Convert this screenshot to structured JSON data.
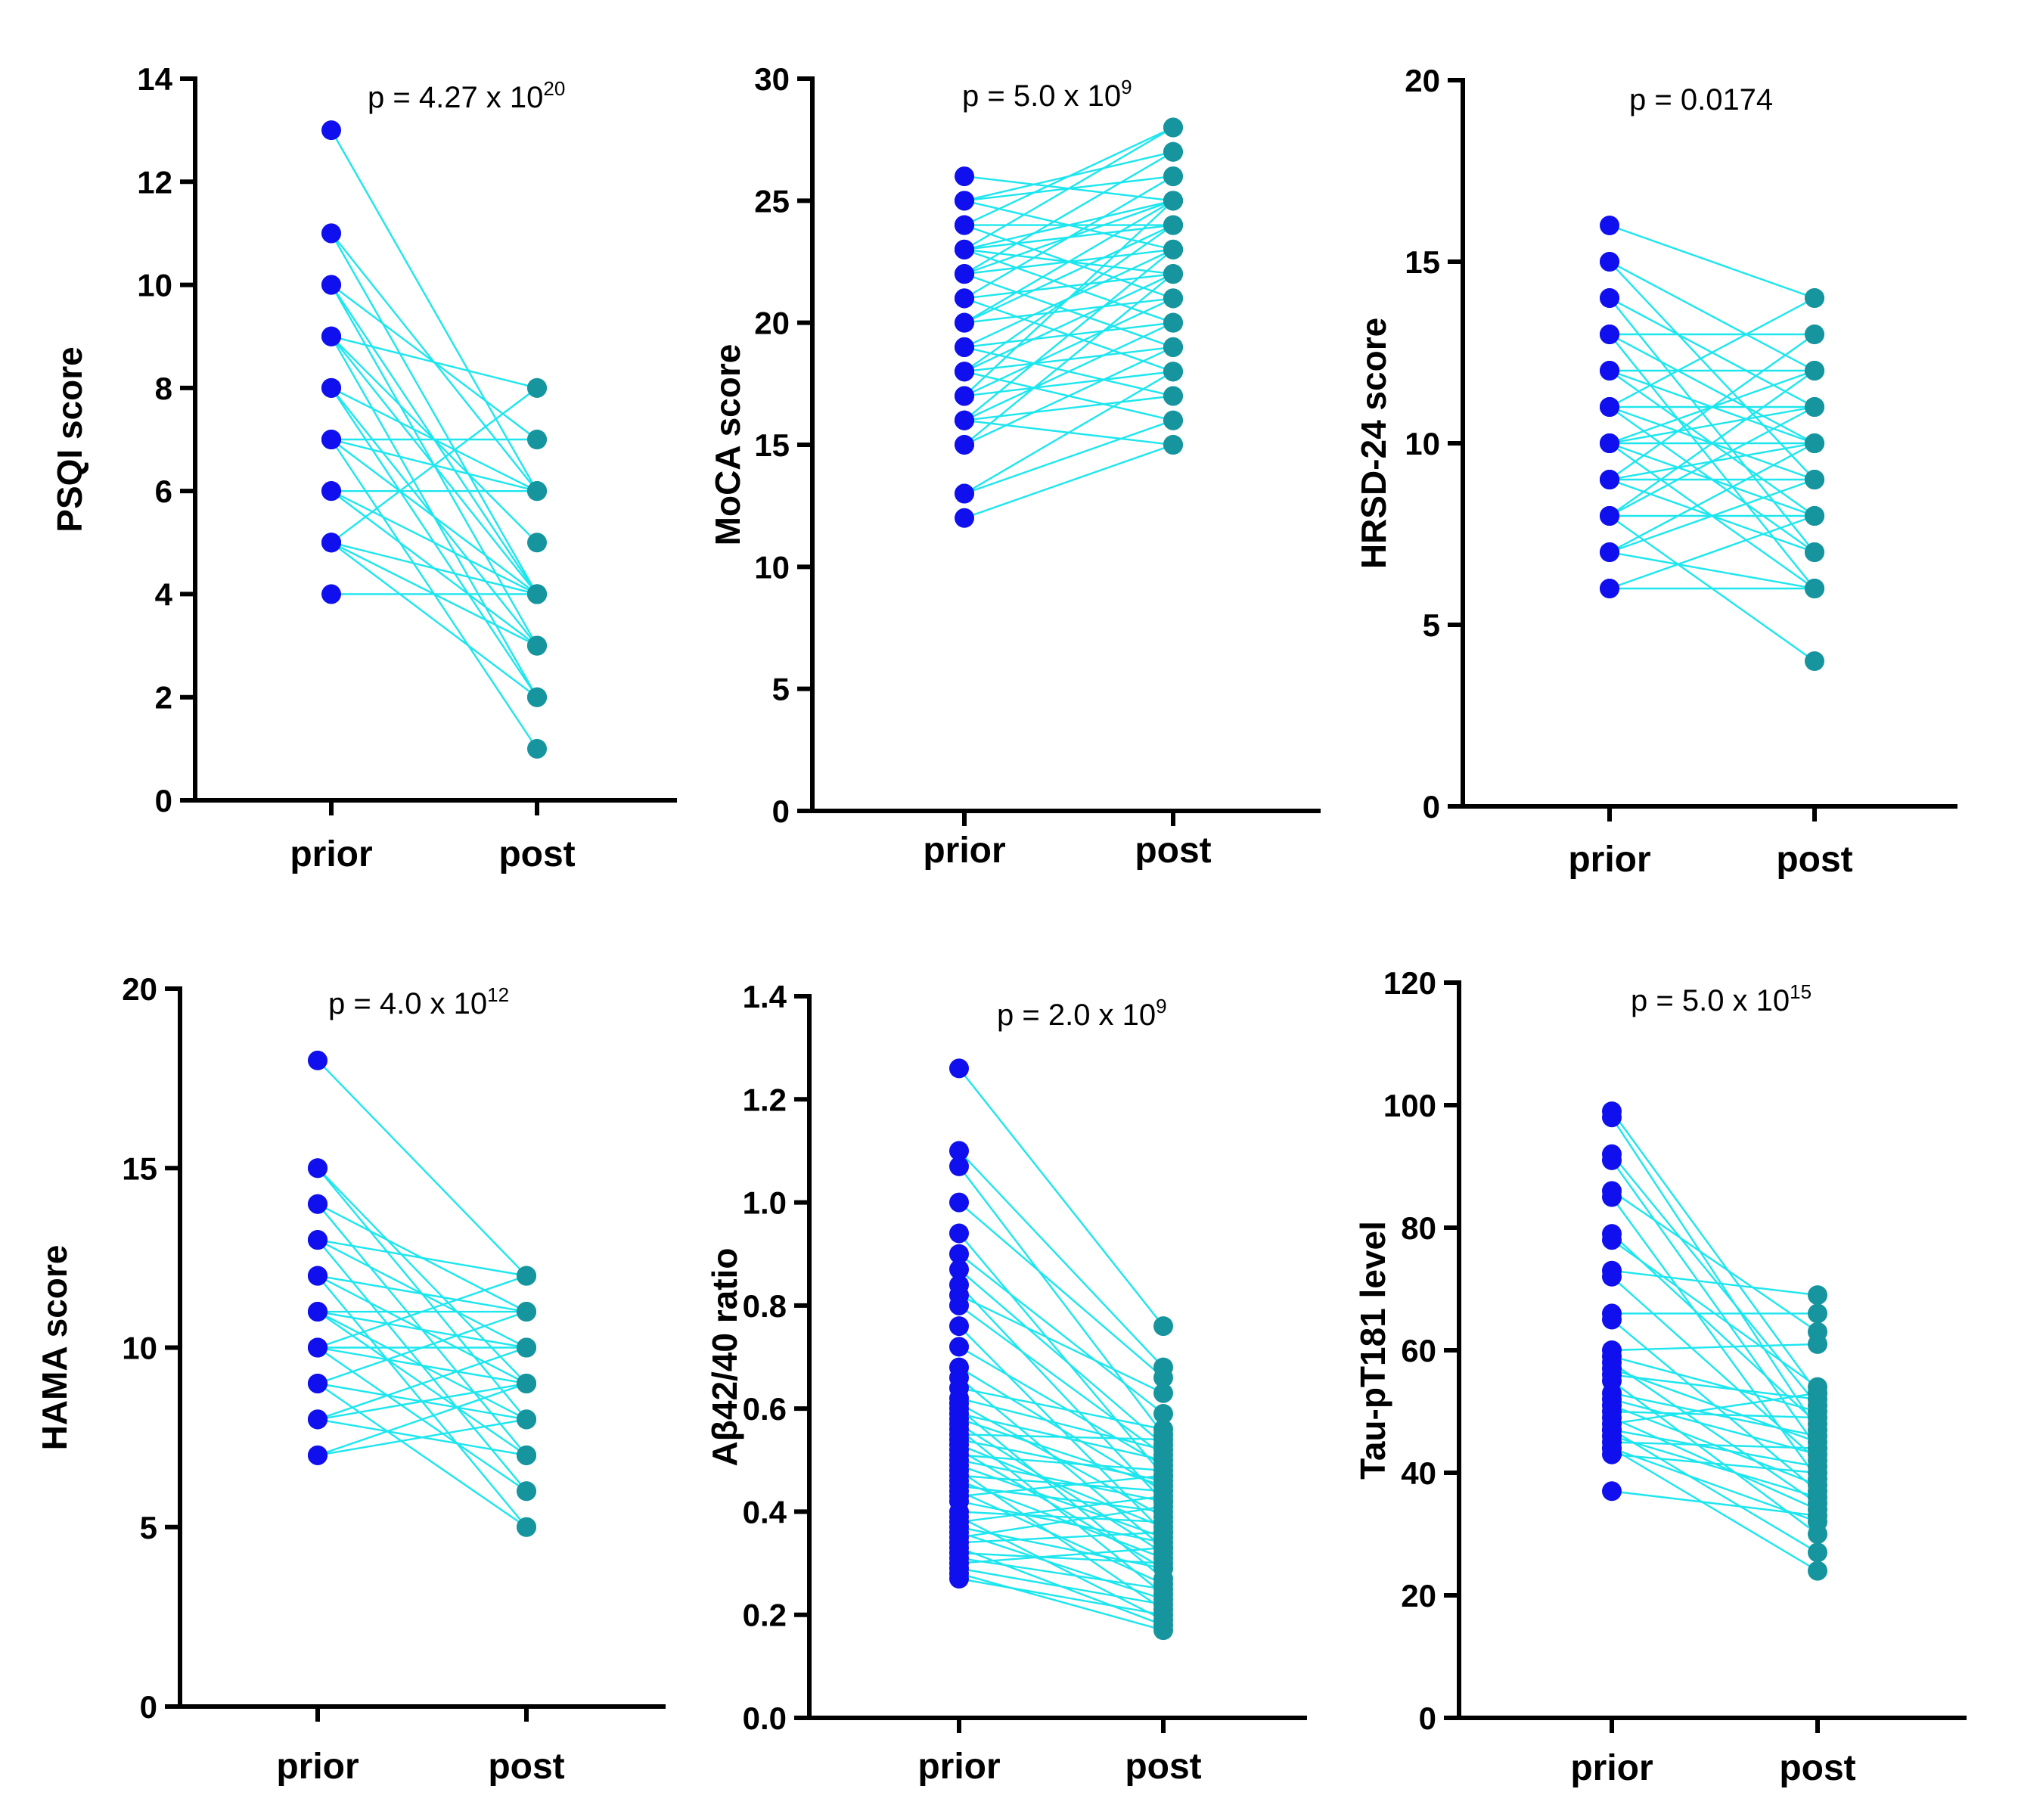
{
  "colors": {
    "prior": "#1010ee",
    "post": "#16959e",
    "line": "#1de6ee",
    "axis": "#000000"
  },
  "chart_data": [
    {
      "type": "scatter",
      "subtype": "paired-dot",
      "ylabel": "PSQI score",
      "categories": [
        "prior",
        "post"
      ],
      "p_label": "p = 4.27 x 10",
      "p_exp": "20",
      "ylim": [
        0,
        14
      ],
      "yticks": [
        0,
        2,
        4,
        6,
        8,
        10,
        12,
        14
      ],
      "pairs": [
        [
          13,
          6
        ],
        [
          11,
          6
        ],
        [
          11,
          4
        ],
        [
          10,
          4
        ],
        [
          10,
          3
        ],
        [
          10,
          7
        ],
        [
          9,
          8
        ],
        [
          9,
          5
        ],
        [
          9,
          4
        ],
        [
          9,
          2
        ],
        [
          8,
          6
        ],
        [
          8,
          3
        ],
        [
          8,
          2
        ],
        [
          7,
          7
        ],
        [
          7,
          6
        ],
        [
          7,
          1
        ],
        [
          7,
          4
        ],
        [
          6,
          6
        ],
        [
          6,
          3
        ],
        [
          6,
          4
        ],
        [
          5,
          8
        ],
        [
          5,
          4
        ],
        [
          5,
          2
        ],
        [
          5,
          3
        ],
        [
          4,
          4
        ]
      ]
    },
    {
      "type": "scatter",
      "subtype": "paired-dot",
      "ylabel": "MoCA score",
      "categories": [
        "prior",
        "post"
      ],
      "p_label": "p = 5.0 x 10",
      "p_exp": "9",
      "ylim": [
        0,
        30
      ],
      "yticks": [
        0,
        5,
        10,
        15,
        20,
        25,
        30
      ],
      "pairs": [
        [
          26,
          25
        ],
        [
          25,
          27
        ],
        [
          25,
          26
        ],
        [
          25,
          23
        ],
        [
          24,
          28
        ],
        [
          24,
          24
        ],
        [
          24,
          21
        ],
        [
          23,
          28
        ],
        [
          23,
          25
        ],
        [
          23,
          22
        ],
        [
          23,
          20
        ],
        [
          23,
          24
        ],
        [
          22,
          27
        ],
        [
          22,
          23
        ],
        [
          22,
          19
        ],
        [
          22,
          25
        ],
        [
          21,
          26
        ],
        [
          21,
          22
        ],
        [
          21,
          18
        ],
        [
          20,
          25
        ],
        [
          20,
          24
        ],
        [
          20,
          21
        ],
        [
          19,
          23
        ],
        [
          19,
          17
        ],
        [
          19,
          20
        ],
        [
          18,
          24
        ],
        [
          18,
          22
        ],
        [
          18,
          19
        ],
        [
          18,
          16
        ],
        [
          17,
          25
        ],
        [
          17,
          21
        ],
        [
          17,
          18
        ],
        [
          16,
          23
        ],
        [
          16,
          20
        ],
        [
          16,
          17
        ],
        [
          16,
          15
        ],
        [
          15,
          22
        ],
        [
          15,
          19
        ],
        [
          13,
          18
        ],
        [
          13,
          16
        ],
        [
          12,
          15
        ]
      ]
    },
    {
      "type": "scatter",
      "subtype": "paired-dot",
      "ylabel": "HRSD-24 score",
      "categories": [
        "prior",
        "post"
      ],
      "p_label": "p = 0.0174",
      "p_exp": "",
      "ylim": [
        0,
        20
      ],
      "yticks": [
        0,
        5,
        10,
        15,
        20
      ],
      "pairs": [
        [
          16,
          14
        ],
        [
          15,
          12
        ],
        [
          15,
          9
        ],
        [
          14,
          11
        ],
        [
          14,
          7
        ],
        [
          13,
          13
        ],
        [
          13,
          10
        ],
        [
          13,
          6
        ],
        [
          12,
          12
        ],
        [
          12,
          8
        ],
        [
          12,
          10
        ],
        [
          11,
          11
        ],
        [
          11,
          14
        ],
        [
          11,
          9
        ],
        [
          11,
          7
        ],
        [
          10,
          10
        ],
        [
          10,
          12
        ],
        [
          10,
          8
        ],
        [
          10,
          6
        ],
        [
          10,
          11
        ],
        [
          9,
          9
        ],
        [
          9,
          13
        ],
        [
          9,
          7
        ],
        [
          9,
          10
        ],
        [
          8,
          8
        ],
        [
          8,
          11
        ],
        [
          8,
          4
        ],
        [
          8,
          12
        ],
        [
          7,
          9
        ],
        [
          7,
          6
        ],
        [
          7,
          10
        ],
        [
          6,
          6
        ],
        [
          6,
          8
        ]
      ]
    },
    {
      "type": "scatter",
      "subtype": "paired-dot",
      "ylabel": "HAMA score",
      "categories": [
        "prior",
        "post"
      ],
      "p_label": "p = 4.0 x 10",
      "p_exp": "12",
      "ylim": [
        0,
        20
      ],
      "yticks": [
        0,
        5,
        10,
        15,
        20
      ],
      "pairs": [
        [
          18,
          12
        ],
        [
          15,
          9
        ],
        [
          15,
          8
        ],
        [
          14,
          11
        ],
        [
          14,
          7
        ],
        [
          13,
          12
        ],
        [
          13,
          10
        ],
        [
          13,
          6
        ],
        [
          12,
          11
        ],
        [
          12,
          9
        ],
        [
          12,
          5
        ],
        [
          11,
          10
        ],
        [
          11,
          8
        ],
        [
          11,
          11
        ],
        [
          11,
          7
        ],
        [
          10,
          9
        ],
        [
          10,
          10
        ],
        [
          10,
          6
        ],
        [
          10,
          12
        ],
        [
          9,
          8
        ],
        [
          9,
          11
        ],
        [
          9,
          5
        ],
        [
          8,
          10
        ],
        [
          8,
          9
        ],
        [
          8,
          7
        ],
        [
          7,
          8
        ],
        [
          7,
          9
        ]
      ]
    },
    {
      "type": "scatter",
      "subtype": "paired-dot",
      "ylabel": "Aβ42/40 ratio",
      "categories": [
        "prior",
        "post"
      ],
      "p_label": "p = 2.0 x 10",
      "p_exp": "9",
      "ylim": [
        0,
        1.4
      ],
      "yticks": [
        0.0,
        0.2,
        0.4,
        0.6,
        0.8,
        1.0,
        1.2,
        1.4
      ],
      "tick_decimals": 1,
      "pairs": [
        [
          1.26,
          0.76
        ],
        [
          1.1,
          0.68
        ],
        [
          1.07,
          0.55
        ],
        [
          1.0,
          0.66
        ],
        [
          0.94,
          0.47
        ],
        [
          0.9,
          0.59
        ],
        [
          0.87,
          0.53
        ],
        [
          0.84,
          0.42
        ],
        [
          0.82,
          0.63
        ],
        [
          0.8,
          0.51
        ],
        [
          0.76,
          0.36
        ],
        [
          0.72,
          0.49
        ],
        [
          0.68,
          0.44
        ],
        [
          0.66,
          0.33
        ],
        [
          0.64,
          0.56
        ],
        [
          0.62,
          0.52
        ],
        [
          0.61,
          0.39
        ],
        [
          0.6,
          0.27
        ],
        [
          0.59,
          0.5
        ],
        [
          0.58,
          0.45
        ],
        [
          0.57,
          0.32
        ],
        [
          0.56,
          0.24
        ],
        [
          0.55,
          0.54
        ],
        [
          0.54,
          0.46
        ],
        [
          0.53,
          0.37
        ],
        [
          0.52,
          0.29
        ],
        [
          0.51,
          0.48
        ],
        [
          0.5,
          0.42
        ],
        [
          0.49,
          0.35
        ],
        [
          0.48,
          0.21
        ],
        [
          0.47,
          0.44
        ],
        [
          0.46,
          0.31
        ],
        [
          0.45,
          0.4
        ],
        [
          0.44,
          0.26
        ],
        [
          0.43,
          0.47
        ],
        [
          0.42,
          0.34
        ],
        [
          0.4,
          0.38
        ],
        [
          0.39,
          0.19
        ],
        [
          0.38,
          0.43
        ],
        [
          0.37,
          0.29
        ],
        [
          0.36,
          0.23
        ],
        [
          0.35,
          0.41
        ],
        [
          0.34,
          0.36
        ],
        [
          0.33,
          0.18
        ],
        [
          0.32,
          0.3
        ],
        [
          0.31,
          0.25
        ],
        [
          0.3,
          0.33
        ],
        [
          0.29,
          0.22
        ],
        [
          0.28,
          0.17
        ],
        [
          0.27,
          0.2
        ]
      ]
    },
    {
      "type": "scatter",
      "subtype": "paired-dot",
      "ylabel": "Tau-pT181 level",
      "categories": [
        "prior",
        "post"
      ],
      "p_label": "p = 5.0 x 10",
      "p_exp": "15",
      "ylim": [
        0,
        120
      ],
      "yticks": [
        0,
        20,
        40,
        60,
        80,
        100,
        120
      ],
      "pairs": [
        [
          99,
          53
        ],
        [
          98,
          47
        ],
        [
          92,
          51
        ],
        [
          91,
          44
        ],
        [
          86,
          63
        ],
        [
          85,
          39
        ],
        [
          79,
          48
        ],
        [
          78,
          54
        ],
        [
          73,
          69
        ],
        [
          72,
          42
        ],
        [
          66,
          66
        ],
        [
          65,
          37
        ],
        [
          60,
          61
        ],
        [
          59,
          50
        ],
        [
          58,
          35
        ],
        [
          57,
          45
        ],
        [
          56,
          52
        ],
        [
          55,
          30
        ],
        [
          53,
          46
        ],
        [
          52,
          43
        ],
        [
          51,
          38
        ],
        [
          50,
          49
        ],
        [
          49,
          34
        ],
        [
          48,
          53
        ],
        [
          47,
          41
        ],
        [
          47,
          27
        ],
        [
          46,
          36
        ],
        [
          45,
          44
        ],
        [
          44,
          32
        ],
        [
          44,
          24
        ],
        [
          43,
          40
        ],
        [
          37,
          33
        ]
      ]
    }
  ]
}
